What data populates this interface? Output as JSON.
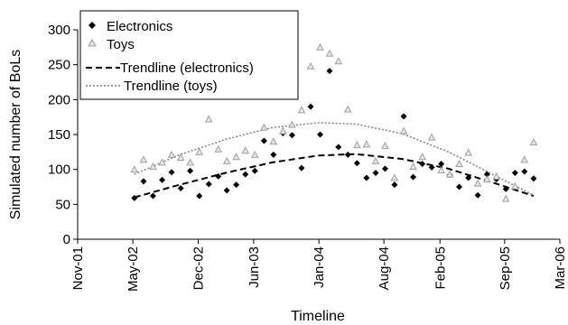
{
  "chart_data": {
    "type": "scatter",
    "title": "",
    "xlabel": "Timeline",
    "ylabel": "Simulated number of BoLs",
    "x_type": "date",
    "xlim": [
      "2001-11-01",
      "2006-03-01"
    ],
    "ylim": [
      0,
      300
    ],
    "yticks": [
      0,
      50,
      100,
      150,
      200,
      250,
      300
    ],
    "xticks": [
      {
        "date": "2001-11-01",
        "label": "Nov-01"
      },
      {
        "date": "2002-05-01",
        "label": "May-02"
      },
      {
        "date": "2002-12-01",
        "label": "Dec-02"
      },
      {
        "date": "2003-06-01",
        "label": "Jun-03"
      },
      {
        "date": "2004-01-01",
        "label": "Jan-04"
      },
      {
        "date": "2004-08-01",
        "label": "Aug-04"
      },
      {
        "date": "2005-02-01",
        "label": "Feb-05"
      },
      {
        "date": "2005-09-01",
        "label": "Sep-05"
      },
      {
        "date": "2006-03-01",
        "label": "Mar-06"
      }
    ],
    "grid": false,
    "legend_position": "top-left",
    "series": [
      {
        "name": "Electronics",
        "kind": "points",
        "marker": "diamond",
        "color": "#000000",
        "points": [
          [
            "2002-05-06",
            59
          ],
          [
            "2002-06-05",
            83
          ],
          [
            "2002-07-06",
            62
          ],
          [
            "2002-08-05",
            85
          ],
          [
            "2002-09-05",
            96
          ],
          [
            "2002-10-05",
            73
          ],
          [
            "2002-11-05",
            98
          ],
          [
            "2002-12-05",
            62
          ],
          [
            "2003-01-05",
            79
          ],
          [
            "2003-02-05",
            90
          ],
          [
            "2003-03-05",
            70
          ],
          [
            "2003-04-05",
            78
          ],
          [
            "2003-05-05",
            93
          ],
          [
            "2003-06-05",
            98
          ],
          [
            "2003-07-05",
            141
          ],
          [
            "2003-08-05",
            121
          ],
          [
            "2003-09-05",
            152
          ],
          [
            "2003-10-05",
            149
          ],
          [
            "2003-11-05",
            102
          ],
          [
            "2003-12-05",
            190
          ],
          [
            "2004-01-05",
            150
          ],
          [
            "2004-02-05",
            241
          ],
          [
            "2004-03-05",
            132
          ],
          [
            "2004-04-05",
            121
          ],
          [
            "2004-05-05",
            109
          ],
          [
            "2004-06-05",
            88
          ],
          [
            "2004-07-05",
            95
          ],
          [
            "2004-08-05",
            101
          ],
          [
            "2004-09-05",
            78
          ],
          [
            "2004-10-05",
            176
          ],
          [
            "2004-11-05",
            89
          ],
          [
            "2004-12-05",
            108
          ],
          [
            "2005-01-05",
            103
          ],
          [
            "2005-02-05",
            108
          ],
          [
            "2005-03-05",
            92
          ],
          [
            "2005-04-05",
            75
          ],
          [
            "2005-05-05",
            88
          ],
          [
            "2005-06-05",
            63
          ],
          [
            "2005-07-05",
            93
          ],
          [
            "2005-08-05",
            86
          ],
          [
            "2005-09-05",
            72
          ],
          [
            "2005-10-05",
            95
          ],
          [
            "2005-11-05",
            97
          ],
          [
            "2005-12-05",
            87
          ]
        ]
      },
      {
        "name": "Toys",
        "kind": "points",
        "marker": "triangle",
        "color": "#a0a0a0",
        "points": [
          [
            "2002-05-06",
            100
          ],
          [
            "2002-06-05",
            114
          ],
          [
            "2002-07-06",
            104
          ],
          [
            "2002-08-05",
            110
          ],
          [
            "2002-09-05",
            121
          ],
          [
            "2002-10-05",
            117
          ],
          [
            "2002-11-05",
            110
          ],
          [
            "2002-12-05",
            125
          ],
          [
            "2003-01-05",
            172
          ],
          [
            "2003-02-05",
            129
          ],
          [
            "2003-03-05",
            112
          ],
          [
            "2003-04-05",
            118
          ],
          [
            "2003-05-05",
            127
          ],
          [
            "2003-06-05",
            121
          ],
          [
            "2003-07-05",
            160
          ],
          [
            "2003-08-05",
            140
          ],
          [
            "2003-09-05",
            155
          ],
          [
            "2003-10-05",
            164
          ],
          [
            "2003-11-05",
            185
          ],
          [
            "2003-12-05",
            248
          ],
          [
            "2004-01-05",
            275
          ],
          [
            "2004-02-05",
            266
          ],
          [
            "2004-03-05",
            255
          ],
          [
            "2004-04-05",
            186
          ],
          [
            "2004-05-05",
            135
          ],
          [
            "2004-06-05",
            136
          ],
          [
            "2004-07-05",
            112
          ],
          [
            "2004-08-05",
            134
          ],
          [
            "2004-09-05",
            88
          ],
          [
            "2004-10-05",
            155
          ],
          [
            "2004-11-05",
            104
          ],
          [
            "2004-12-05",
            118
          ],
          [
            "2005-01-05",
            146
          ],
          [
            "2005-02-05",
            99
          ],
          [
            "2005-03-05",
            93
          ],
          [
            "2005-04-05",
            108
          ],
          [
            "2005-05-05",
            124
          ],
          [
            "2005-06-05",
            80
          ],
          [
            "2005-07-05",
            86
          ],
          [
            "2005-08-05",
            90
          ],
          [
            "2005-09-05",
            58
          ],
          [
            "2005-10-05",
            76
          ],
          [
            "2005-11-05",
            114
          ],
          [
            "2005-12-05",
            139
          ]
        ]
      },
      {
        "name": "Trendline (electronics)",
        "kind": "line",
        "dash": "long",
        "color": "#000000",
        "points": [
          [
            "2002-05-06",
            60
          ],
          [
            "2002-10-01",
            78
          ],
          [
            "2003-03-01",
            95
          ],
          [
            "2003-08-01",
            110
          ],
          [
            "2004-01-01",
            120
          ],
          [
            "2004-05-01",
            122
          ],
          [
            "2004-10-01",
            115
          ],
          [
            "2005-03-01",
            101
          ],
          [
            "2005-08-01",
            80
          ],
          [
            "2005-12-05",
            62
          ]
        ]
      },
      {
        "name": "Trendline (toys)",
        "kind": "line",
        "dash": "short",
        "color": "#808080",
        "points": [
          [
            "2002-05-06",
            93
          ],
          [
            "2002-10-01",
            121
          ],
          [
            "2003-03-01",
            143
          ],
          [
            "2003-08-01",
            160
          ],
          [
            "2004-01-01",
            167
          ],
          [
            "2004-05-01",
            165
          ],
          [
            "2004-10-01",
            151
          ],
          [
            "2005-03-01",
            125
          ],
          [
            "2005-08-01",
            91
          ],
          [
            "2005-12-05",
            63
          ]
        ]
      }
    ]
  }
}
